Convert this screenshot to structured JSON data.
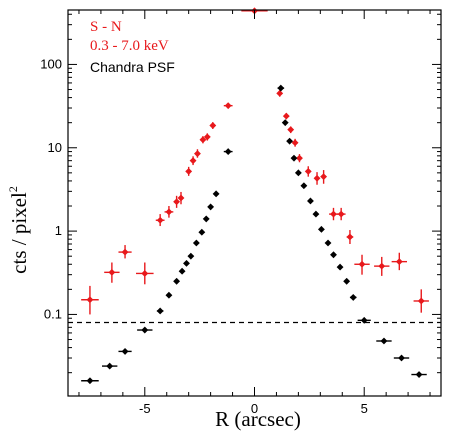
{
  "chart_data": {
    "type": "scatter",
    "xlabel": "R (arcsec)",
    "ylabel": "cts / pixel",
    "ylabel_superscript": "2",
    "x_scale": "linear",
    "y_scale": "log",
    "xlim": [
      -8.5,
      8.5
    ],
    "ylim": [
      0.0105,
      450
    ],
    "x_ticks": [
      {
        "value": -5,
        "label": "-5"
      },
      {
        "value": 0,
        "label": "0"
      },
      {
        "value": 5,
        "label": "5"
      }
    ],
    "y_ticks": [
      {
        "value": 0.1,
        "label": "0.1"
      },
      {
        "value": 1,
        "label": "1"
      },
      {
        "value": 10,
        "label": "10"
      },
      {
        "value": 100,
        "label": "100"
      }
    ],
    "grid": false,
    "legend_position": "top-left",
    "reference_line": {
      "y": 0.08,
      "style": "dashed",
      "color": "#000000"
    },
    "series": [
      {
        "name": "S - N",
        "color": "#e8191c",
        "points": [
          {
            "x": -7.5,
            "y": 0.15,
            "xerr": 0.4,
            "ylo": 0.1,
            "yhi": 0.22
          },
          {
            "x": -6.5,
            "y": 0.32,
            "xerr": 0.35,
            "ylo": 0.24,
            "yhi": 0.42
          },
          {
            "x": -5.9,
            "y": 0.56,
            "xerr": 0.3,
            "ylo": 0.47,
            "yhi": 0.68
          },
          {
            "x": -5.0,
            "y": 0.31,
            "xerr": 0.4,
            "ylo": 0.23,
            "yhi": 0.42
          },
          {
            "x": -4.3,
            "y": 1.35,
            "xerr": 0.2,
            "ylo": 1.15,
            "yhi": 1.6
          },
          {
            "x": -3.9,
            "y": 1.7,
            "xerr": 0.2,
            "ylo": 1.45,
            "yhi": 2.0
          },
          {
            "x": -3.55,
            "y": 2.25,
            "xerr": 0.1,
            "ylo": 1.9,
            "yhi": 2.65
          },
          {
            "x": -3.35,
            "y": 2.5,
            "xerr": 0.1,
            "ylo": 2.1,
            "yhi": 2.95
          },
          {
            "x": -3.0,
            "y": 5.2,
            "xerr": 0.07,
            "ylo": 4.6,
            "yhi": 5.9
          },
          {
            "x": -2.8,
            "y": 7.0,
            "xerr": 0.07,
            "ylo": 6.2,
            "yhi": 7.9
          },
          {
            "x": -2.6,
            "y": 8.5,
            "xerr": 0.07,
            "ylo": 7.6,
            "yhi": 9.6
          },
          {
            "x": -2.35,
            "y": 12.5,
            "xerr": 0.07,
            "ylo": 11.3,
            "yhi": 13.8
          },
          {
            "x": -2.15,
            "y": 13.5,
            "xerr": 0.07,
            "ylo": 12.2,
            "yhi": 14.9
          },
          {
            "x": -1.9,
            "y": 18.5,
            "xerr": 0.07,
            "ylo": 16.8,
            "yhi": 20.3
          },
          {
            "x": -1.2,
            "y": 32,
            "xerr": 0.2,
            "ylo": 30,
            "yhi": 34
          },
          {
            "x": 0.0,
            "y": 440,
            "xerr": 0.6,
            "ylo": 410,
            "yhi": 470
          },
          {
            "x": 1.15,
            "y": 45,
            "xerr": 0.07,
            "ylo": 41,
            "yhi": 49
          },
          {
            "x": 1.45,
            "y": 24,
            "xerr": 0.07,
            "ylo": 22,
            "yhi": 26
          },
          {
            "x": 1.65,
            "y": 16.5,
            "xerr": 0.07,
            "ylo": 15,
            "yhi": 18
          },
          {
            "x": 1.85,
            "y": 11.5,
            "xerr": 0.07,
            "ylo": 10.3,
            "yhi": 12.8
          },
          {
            "x": 2.05,
            "y": 7.5,
            "xerr": 0.07,
            "ylo": 6.7,
            "yhi": 8.4
          },
          {
            "x": 2.45,
            "y": 5.2,
            "xerr": 0.1,
            "ylo": 4.5,
            "yhi": 6.0
          },
          {
            "x": 2.85,
            "y": 4.3,
            "xerr": 0.1,
            "ylo": 3.6,
            "yhi": 5.1
          },
          {
            "x": 3.15,
            "y": 4.5,
            "xerr": 0.1,
            "ylo": 3.7,
            "yhi": 5.4
          },
          {
            "x": 3.6,
            "y": 1.6,
            "xerr": 0.2,
            "ylo": 1.35,
            "yhi": 1.9
          },
          {
            "x": 3.95,
            "y": 1.6,
            "xerr": 0.2,
            "ylo": 1.35,
            "yhi": 1.9
          },
          {
            "x": 4.35,
            "y": 0.85,
            "xerr": 0.15,
            "ylo": 0.7,
            "yhi": 1.03
          },
          {
            "x": 4.9,
            "y": 0.4,
            "xerr": 0.35,
            "ylo": 0.3,
            "yhi": 0.52
          },
          {
            "x": 5.8,
            "y": 0.38,
            "xerr": 0.35,
            "ylo": 0.29,
            "yhi": 0.49
          },
          {
            "x": 6.6,
            "y": 0.43,
            "xerr": 0.35,
            "ylo": 0.34,
            "yhi": 0.55
          },
          {
            "x": 7.6,
            "y": 0.145,
            "xerr": 0.35,
            "ylo": 0.105,
            "yhi": 0.2
          }
        ]
      },
      {
        "name": "Chandra PSF",
        "color": "#000000",
        "points": [
          {
            "x": -7.5,
            "y": 0.016,
            "xerr": 0.4
          },
          {
            "x": -6.6,
            "y": 0.024,
            "xerr": 0.35
          },
          {
            "x": -5.9,
            "y": 0.036,
            "xerr": 0.3
          },
          {
            "x": -5.0,
            "y": 0.065,
            "xerr": 0.35
          },
          {
            "x": -4.3,
            "y": 0.11,
            "xerr": 0.15
          },
          {
            "x": -3.9,
            "y": 0.17,
            "xerr": 0.1
          },
          {
            "x": -3.55,
            "y": 0.25,
            "xerr": 0.08
          },
          {
            "x": -3.3,
            "y": 0.33,
            "xerr": 0.07
          },
          {
            "x": -3.1,
            "y": 0.41,
            "xerr": 0.07
          },
          {
            "x": -2.9,
            "y": 0.5,
            "xerr": 0.07
          },
          {
            "x": -2.65,
            "y": 0.72,
            "xerr": 0.07
          },
          {
            "x": -2.4,
            "y": 0.97,
            "xerr": 0.07
          },
          {
            "x": -2.2,
            "y": 1.4,
            "xerr": 0.07
          },
          {
            "x": -2.0,
            "y": 1.95,
            "xerr": 0.07
          },
          {
            "x": -1.75,
            "y": 2.8,
            "xerr": 0.07
          },
          {
            "x": -1.2,
            "y": 9.0,
            "xerr": 0.2
          },
          {
            "x": 1.2,
            "y": 52,
            "xerr": 0.15
          },
          {
            "x": 1.4,
            "y": 20,
            "xerr": 0.07
          },
          {
            "x": 1.6,
            "y": 12,
            "xerr": 0.07
          },
          {
            "x": 1.8,
            "y": 7.5,
            "xerr": 0.07
          },
          {
            "x": 2.0,
            "y": 5.0,
            "xerr": 0.07
          },
          {
            "x": 2.25,
            "y": 3.5,
            "xerr": 0.07
          },
          {
            "x": 2.55,
            "y": 2.3,
            "xerr": 0.07
          },
          {
            "x": 2.8,
            "y": 1.6,
            "xerr": 0.07
          },
          {
            "x": 3.05,
            "y": 1.05,
            "xerr": 0.07
          },
          {
            "x": 3.35,
            "y": 0.72,
            "xerr": 0.07
          },
          {
            "x": 3.6,
            "y": 0.52,
            "xerr": 0.07
          },
          {
            "x": 3.9,
            "y": 0.37,
            "xerr": 0.07
          },
          {
            "x": 4.2,
            "y": 0.25,
            "xerr": 0.1
          },
          {
            "x": 4.5,
            "y": 0.16,
            "xerr": 0.15
          },
          {
            "x": 5.0,
            "y": 0.085,
            "xerr": 0.3
          },
          {
            "x": 5.9,
            "y": 0.048,
            "xerr": 0.35
          },
          {
            "x": 6.7,
            "y": 0.03,
            "xerr": 0.35
          },
          {
            "x": 7.5,
            "y": 0.019,
            "xerr": 0.35
          }
        ]
      }
    ],
    "legend": [
      {
        "text": "S - N",
        "color": "#e8191c"
      },
      {
        "text": "0.3 - 7.0 keV",
        "color": "#e8191c"
      },
      {
        "text": "Chandra PSF",
        "color": "#000000"
      }
    ]
  }
}
